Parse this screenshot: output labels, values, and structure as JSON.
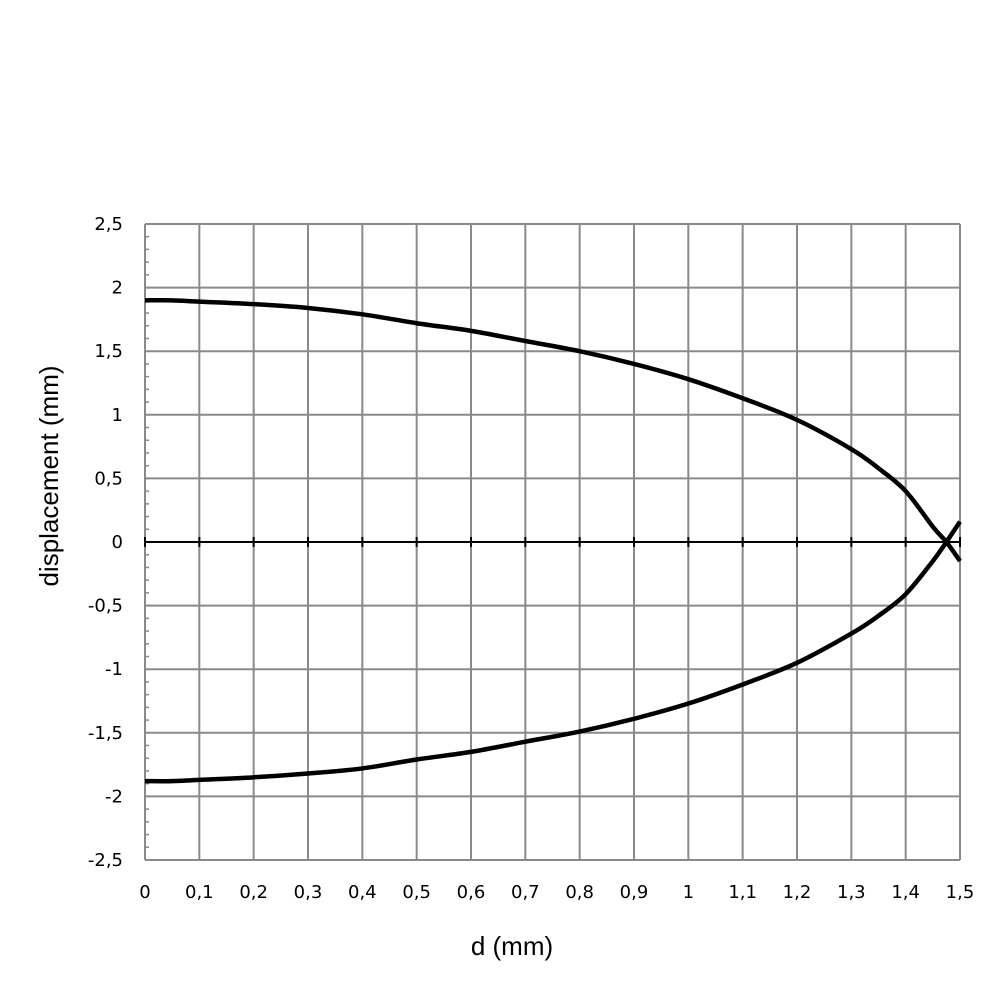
{
  "chart_data": {
    "type": "line",
    "xlabel": "d (mm)",
    "ylabel": "displacement (mm)",
    "xlim": [
      0,
      1.5
    ],
    "ylim": [
      -2.5,
      2.5
    ],
    "xticks": [
      "0",
      "0,1",
      "0,2",
      "0,3",
      "0,4",
      "0,5",
      "0,6",
      "0,7",
      "0,8",
      "0,9",
      "1",
      "1,1",
      "1,2",
      "1,3",
      "1,4",
      "1,5"
    ],
    "yticks": [
      "2,5",
      "2",
      "1,5",
      "1",
      "0,5",
      "0",
      "-0,5",
      "-1",
      "-1,5",
      "-2",
      "-2,5"
    ],
    "grid": true,
    "series": [
      {
        "color": "#000000",
        "x": [
          0,
          0.05,
          0.1,
          0.2,
          0.3,
          0.4,
          0.5,
          0.6,
          0.7,
          0.8,
          0.9,
          1.0,
          1.1,
          1.2,
          1.3,
          1.35,
          1.4,
          1.45,
          1.475,
          1.5
        ],
        "y": [
          1.9,
          1.9,
          1.89,
          1.87,
          1.84,
          1.79,
          1.72,
          1.66,
          1.58,
          1.5,
          1.4,
          1.28,
          1.13,
          0.96,
          0.73,
          0.58,
          0.4,
          0.12,
          0.0,
          -0.15
        ]
      },
      {
        "color": "#000000",
        "x": [
          0,
          0.05,
          0.1,
          0.2,
          0.3,
          0.4,
          0.5,
          0.6,
          0.7,
          0.8,
          0.9,
          1.0,
          1.1,
          1.2,
          1.3,
          1.35,
          1.4,
          1.45,
          1.475,
          1.5
        ],
        "y": [
          -1.88,
          -1.88,
          -1.87,
          -1.85,
          -1.82,
          -1.78,
          -1.71,
          -1.65,
          -1.57,
          -1.49,
          -1.39,
          -1.27,
          -1.12,
          -0.95,
          -0.72,
          -0.58,
          -0.41,
          -0.15,
          0.0,
          0.16
        ]
      }
    ]
  }
}
